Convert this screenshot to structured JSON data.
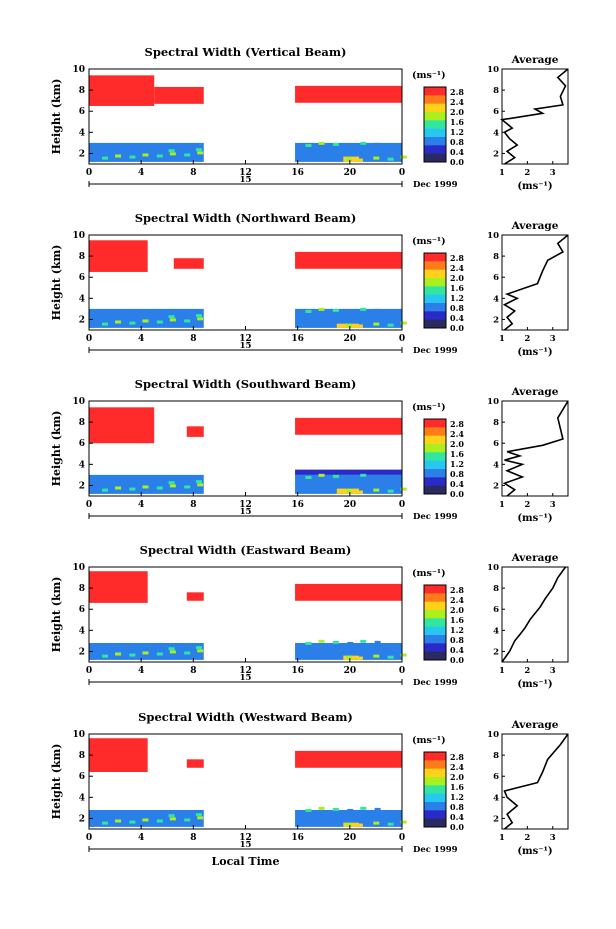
{
  "shared": {
    "ylabel": "Height (km)",
    "x_ticks": [
      "0",
      "4",
      "8",
      "12",
      "16",
      "20",
      "0"
    ],
    "day_label": "15",
    "date_label": "Dec 1999",
    "unit_label": "(ms⁻¹)",
    "colorbar_ticks": [
      "2.8",
      "2.4",
      "2.0",
      "1.6",
      "1.2",
      "0.8",
      "0.4",
      "0.0"
    ],
    "colorbar_colors": [
      "#ff2a2a",
      "#ff7a18",
      "#ffd21a",
      "#aaf01e",
      "#33e6a0",
      "#26c8f0",
      "#2a7fe8",
      "#2a2ac8",
      "#2a2a60"
    ],
    "y_ticks": [
      "10",
      "8",
      "6",
      "4",
      "2"
    ],
    "avg_title": "Average",
    "avg_xticks": [
      "1",
      "2",
      "3"
    ],
    "avg_xlabel": "(ms⁻¹)",
    "xlabel": "Local Time"
  },
  "panels": [
    {
      "title": "Spectral Width (Vertical Beam)"
    },
    {
      "title": "Spectral Width (Northward Beam)"
    },
    {
      "title": "Spectral Width (Southward Beam)"
    },
    {
      "title": "Spectral Width (Eastward Beam)"
    },
    {
      "title": "Spectral Width (Westward Beam)"
    }
  ],
  "chart_data": [
    {
      "type": "heatmap",
      "title": "Spectral Width (Vertical Beam)",
      "xlabel": "",
      "ylabel": "Height (km)",
      "xlim": [
        0,
        24
      ],
      "ylim": [
        1,
        10
      ],
      "colorbar_range": [
        0.0,
        3.0
      ],
      "regions": [
        {
          "x": [
            0,
            5
          ],
          "y": [
            6.5,
            9.4
          ],
          "value": 3.0
        },
        {
          "x": [
            5,
            8.8
          ],
          "y": [
            6.7,
            8.3
          ],
          "value": 3.0
        },
        {
          "x": [
            15.8,
            24
          ],
          "y": [
            6.8,
            8.4
          ],
          "value": 3.0
        },
        {
          "x": [
            0,
            8.8
          ],
          "y": [
            1.2,
            3.0
          ],
          "value": 0.8
        },
        {
          "x": [
            15.8,
            24
          ],
          "y": [
            1.2,
            3.0
          ],
          "value": 0.8
        },
        {
          "x": [
            19.5,
            21
          ],
          "y": [
            1.2,
            1.7
          ],
          "value": 2.2
        }
      ],
      "avg_profile": {
        "x": [
          1.1,
          1.5,
          1.2,
          1.6,
          1.3,
          1.1,
          1.4,
          1.0,
          2.6,
          2.3,
          3.4,
          3.3,
          3.5,
          3.2,
          3.6
        ],
        "y": [
          1.0,
          1.6,
          2.2,
          2.8,
          3.4,
          4.0,
          4.4,
          5.2,
          5.8,
          6.2,
          6.6,
          7.4,
          8.4,
          9.2,
          10.0
        ],
        "xlim": [
          1,
          3.6
        ],
        "xlabel": "(ms⁻¹)"
      }
    },
    {
      "type": "heatmap",
      "title": "Spectral Width (Northward Beam)",
      "xlabel": "",
      "ylabel": "Height (km)",
      "xlim": [
        0,
        24
      ],
      "ylim": [
        1,
        10
      ],
      "colorbar_range": [
        0.0,
        3.0
      ],
      "regions": [
        {
          "x": [
            0,
            4.5
          ],
          "y": [
            6.5,
            9.5
          ],
          "value": 3.0
        },
        {
          "x": [
            6.5,
            8.8
          ],
          "y": [
            6.8,
            7.8
          ],
          "value": 3.0
        },
        {
          "x": [
            15.8,
            24
          ],
          "y": [
            6.8,
            8.4
          ],
          "value": 3.0
        },
        {
          "x": [
            0,
            8.8
          ],
          "y": [
            1.2,
            3.0
          ],
          "value": 0.8
        },
        {
          "x": [
            15.8,
            24
          ],
          "y": [
            1.2,
            3.0
          ],
          "value": 0.8
        },
        {
          "x": [
            19.0,
            21
          ],
          "y": [
            1.2,
            1.6
          ],
          "value": 2.2
        }
      ],
      "avg_profile": {
        "x": [
          1.1,
          1.4,
          1.2,
          1.5,
          1.1,
          1.6,
          1.2,
          2.4,
          2.6,
          2.8,
          3.4,
          3.2,
          3.6
        ],
        "y": [
          1.0,
          1.6,
          2.2,
          2.8,
          3.4,
          4.0,
          4.4,
          5.4,
          6.6,
          7.6,
          8.4,
          9.2,
          10.0
        ],
        "xlim": [
          1,
          3.6
        ],
        "xlabel": "(ms⁻¹)"
      }
    },
    {
      "type": "heatmap",
      "title": "Spectral Width (Southward Beam)",
      "xlabel": "",
      "ylabel": "Height (km)",
      "xlim": [
        0,
        24
      ],
      "ylim": [
        1,
        10
      ],
      "colorbar_range": [
        0.0,
        3.0
      ],
      "regions": [
        {
          "x": [
            0,
            5
          ],
          "y": [
            6.0,
            9.4
          ],
          "value": 3.0
        },
        {
          "x": [
            7.5,
            8.8
          ],
          "y": [
            6.6,
            7.6
          ],
          "value": 3.0
        },
        {
          "x": [
            15.8,
            24
          ],
          "y": [
            6.8,
            8.4
          ],
          "value": 3.0
        },
        {
          "x": [
            0,
            8.8
          ],
          "y": [
            1.2,
            3.0
          ],
          "value": 0.8
        },
        {
          "x": [
            15.8,
            24
          ],
          "y": [
            1.2,
            3.0
          ],
          "value": 0.8
        },
        {
          "x": [
            15.8,
            24
          ],
          "y": [
            3.0,
            3.5
          ],
          "value": 0.2
        },
        {
          "x": [
            19.0,
            21
          ],
          "y": [
            1.2,
            1.7
          ],
          "value": 2.2
        }
      ],
      "avg_profile": {
        "x": [
          1.2,
          1.5,
          1.1,
          1.8,
          1.2,
          1.8,
          1.1,
          1.7,
          1.2,
          2.6,
          3.4,
          3.2,
          3.6
        ],
        "y": [
          1.0,
          1.6,
          2.2,
          2.8,
          3.4,
          4.0,
          4.4,
          4.8,
          5.2,
          5.8,
          6.4,
          8.4,
          10.0
        ],
        "xlim": [
          1,
          3.6
        ],
        "xlabel": "(ms⁻¹)"
      }
    },
    {
      "type": "heatmap",
      "title": "Spectral Width (Eastward Beam)",
      "xlabel": "",
      "ylabel": "Height (km)",
      "xlim": [
        0,
        24
      ],
      "ylim": [
        1,
        10
      ],
      "colorbar_range": [
        0.0,
        3.0
      ],
      "regions": [
        {
          "x": [
            0,
            4.5
          ],
          "y": [
            6.6,
            9.6
          ],
          "value": 3.0
        },
        {
          "x": [
            7.5,
            8.8
          ],
          "y": [
            6.8,
            7.6
          ],
          "value": 3.0
        },
        {
          "x": [
            15.8,
            24
          ],
          "y": [
            6.8,
            8.4
          ],
          "value": 3.0
        },
        {
          "x": [
            0,
            8.8
          ],
          "y": [
            1.2,
            2.8
          ],
          "value": 0.8
        },
        {
          "x": [
            15.8,
            24
          ],
          "y": [
            1.2,
            2.8
          ],
          "value": 0.8
        },
        {
          "x": [
            19.5,
            21
          ],
          "y": [
            1.2,
            1.6
          ],
          "value": 2.2
        }
      ],
      "avg_profile": {
        "x": [
          1.0,
          1.3,
          1.5,
          1.7,
          1.9,
          2.1,
          2.3,
          2.5,
          2.7,
          3.0,
          3.2,
          3.5
        ],
        "y": [
          1.0,
          2.0,
          3.0,
          3.6,
          4.2,
          5.0,
          5.6,
          6.2,
          7.0,
          8.0,
          9.0,
          10.0
        ],
        "xlim": [
          1,
          3.6
        ],
        "xlabel": "(ms⁻¹)"
      }
    },
    {
      "type": "heatmap",
      "title": "Spectral Width (Westward Beam)",
      "xlabel": "Local Time",
      "ylabel": "Height (km)",
      "xlim": [
        0,
        24
      ],
      "ylim": [
        1,
        10
      ],
      "colorbar_range": [
        0.0,
        3.0
      ],
      "regions": [
        {
          "x": [
            0,
            4.5
          ],
          "y": [
            6.4,
            9.6
          ],
          "value": 3.0
        },
        {
          "x": [
            7.5,
            8.8
          ],
          "y": [
            6.8,
            7.6
          ],
          "value": 3.0
        },
        {
          "x": [
            15.8,
            24
          ],
          "y": [
            6.8,
            8.4
          ],
          "value": 3.0
        },
        {
          "x": [
            0,
            8.8
          ],
          "y": [
            1.2,
            2.8
          ],
          "value": 0.8
        },
        {
          "x": [
            15.8,
            24
          ],
          "y": [
            1.2,
            2.8
          ],
          "value": 0.8
        },
        {
          "x": [
            19.5,
            21
          ],
          "y": [
            1.2,
            1.6
          ],
          "value": 2.2
        }
      ],
      "avg_profile": {
        "x": [
          1.1,
          1.4,
          1.2,
          1.6,
          1.2,
          1.1,
          2.4,
          2.6,
          2.8,
          3.3,
          3.6
        ],
        "y": [
          1.0,
          1.6,
          2.4,
          3.2,
          4.0,
          4.6,
          5.4,
          6.4,
          7.6,
          9.0,
          10.0
        ],
        "xlim": [
          1,
          3.6
        ],
        "xlabel": "(ms⁻¹)"
      }
    }
  ]
}
